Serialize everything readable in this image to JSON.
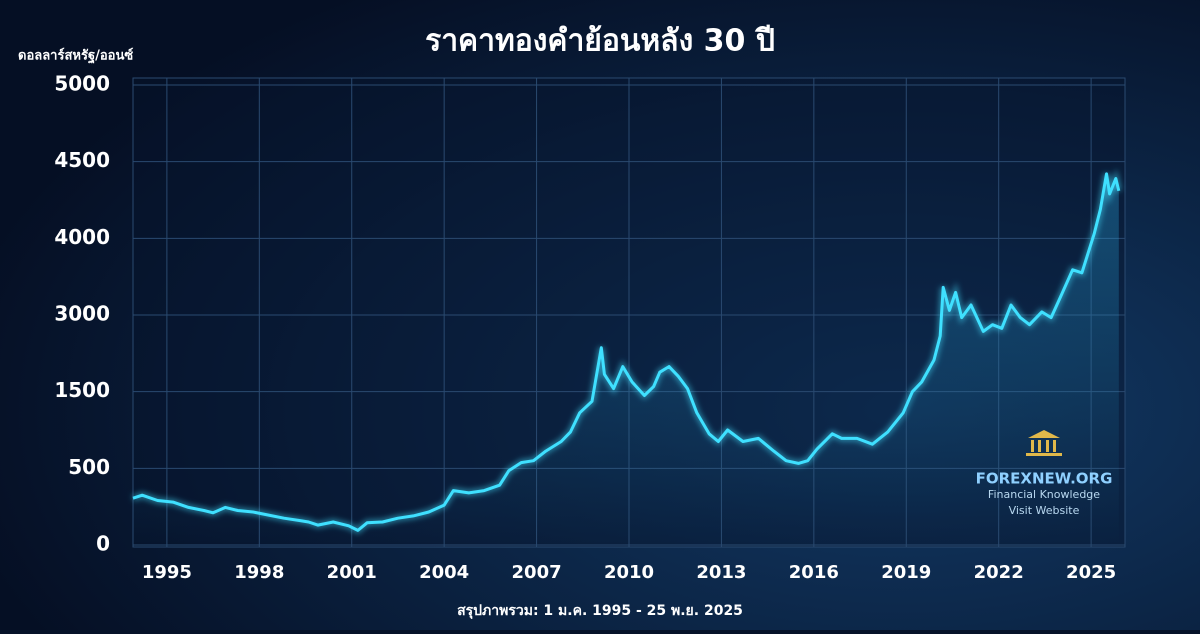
{
  "chart_data": {
    "type": "line",
    "title": "ราคาทองคำย้อนหลัง 30 ปี",
    "y_label": "ดอลลาร์สหรัฐ/ออนซ์",
    "subtitle": "สรุปภาพรวม: 1 ม.ค. 1995 - 25 พ.ย. 2025",
    "color": "#3fe0ff",
    "grid": true,
    "xlim": [
      1993.9,
      2026.1
    ],
    "xticks": [
      1995,
      1998,
      2001,
      2004,
      2007,
      2010,
      2013,
      2016,
      2019,
      2022,
      2025
    ],
    "ylim": [
      0,
      5000
    ],
    "yticks": [
      0,
      500,
      1500,
      3000,
      4000,
      4500,
      5000
    ],
    "x": [
      1993.9,
      1994.2,
      1994.7,
      1995.2,
      1995.7,
      1996.2,
      1996.5,
      1996.9,
      1997.3,
      1997.8,
      1998.3,
      1998.8,
      1999.3,
      1999.6,
      1999.9,
      2000.4,
      2000.9,
      2001.2,
      2001.5,
      2002.0,
      2002.5,
      2003.0,
      2003.5,
      2004.0,
      2004.3,
      2004.8,
      2005.3,
      2005.8,
      2006.1,
      2006.5,
      2006.9,
      2007.3,
      2007.8,
      2008.1,
      2008.4,
      2008.8,
      2009.1,
      2009.2,
      2009.5,
      2009.8,
      2010.1,
      2010.5,
      2010.8,
      2011.0,
      2011.3,
      2011.6,
      2011.9,
      2012.2,
      2012.6,
      2012.9,
      2013.2,
      2013.7,
      2014.2,
      2014.7,
      2015.1,
      2015.5,
      2015.8,
      2016.1,
      2016.6,
      2016.9,
      2017.4,
      2017.9,
      2018.4,
      2018.9,
      2019.2,
      2019.5,
      2019.9,
      2020.1,
      2020.2,
      2020.4,
      2020.6,
      2020.8,
      2021.1,
      2021.5,
      2021.8,
      2022.1,
      2022.4,
      2022.7,
      2023.0,
      2023.4,
      2023.7,
      2024.0,
      2024.4,
      2024.7,
      2025.1,
      2025.3,
      2025.5,
      2025.6,
      2025.8,
      2025.9
    ],
    "values": [
      305,
      325,
      290,
      280,
      245,
      225,
      210,
      245,
      225,
      215,
      195,
      175,
      160,
      150,
      130,
      150,
      125,
      95,
      145,
      150,
      175,
      190,
      215,
      260,
      355,
      340,
      355,
      390,
      485,
      575,
      600,
      725,
      850,
      975,
      1225,
      1375,
      2360,
      1840,
      1560,
      1990,
      1690,
      1450,
      1600,
      1880,
      1990,
      1800,
      1560,
      1225,
      950,
      850,
      1000,
      850,
      890,
      725,
      600,
      565,
      600,
      750,
      950,
      890,
      890,
      815,
      975,
      1225,
      1500,
      1690,
      2120,
      2590,
      3360,
      3060,
      3295,
      2950,
      3130,
      2680,
      2810,
      2740,
      3130,
      2950,
      2810,
      3040,
      2950,
      3230,
      3590,
      3550,
      4030,
      4190,
      4420,
      4290,
      4390,
      4310
    ]
  },
  "watermark": {
    "name": "FOREXNEW.ORG",
    "tagline": "Financial Knowledge",
    "link": "Visit Website"
  }
}
